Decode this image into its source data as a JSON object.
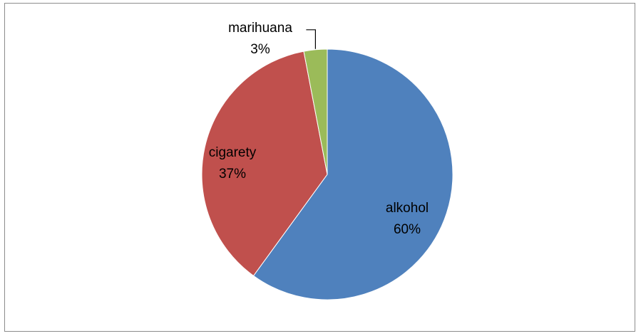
{
  "chart_data": {
    "type": "pie",
    "title": "",
    "slices": [
      {
        "label": "alkohol",
        "value": 60,
        "display": "60%",
        "color": "#4F81BD"
      },
      {
        "label": "cigarety",
        "value": 37,
        "display": "37%",
        "color": "#C0504D"
      },
      {
        "label": "marihuana",
        "value": 3,
        "display": "3%",
        "color": "#9BBB59"
      }
    ],
    "start_angle_deg": 0,
    "direction": "clockwise",
    "legend": "none",
    "data_labels": "category and percentage"
  }
}
